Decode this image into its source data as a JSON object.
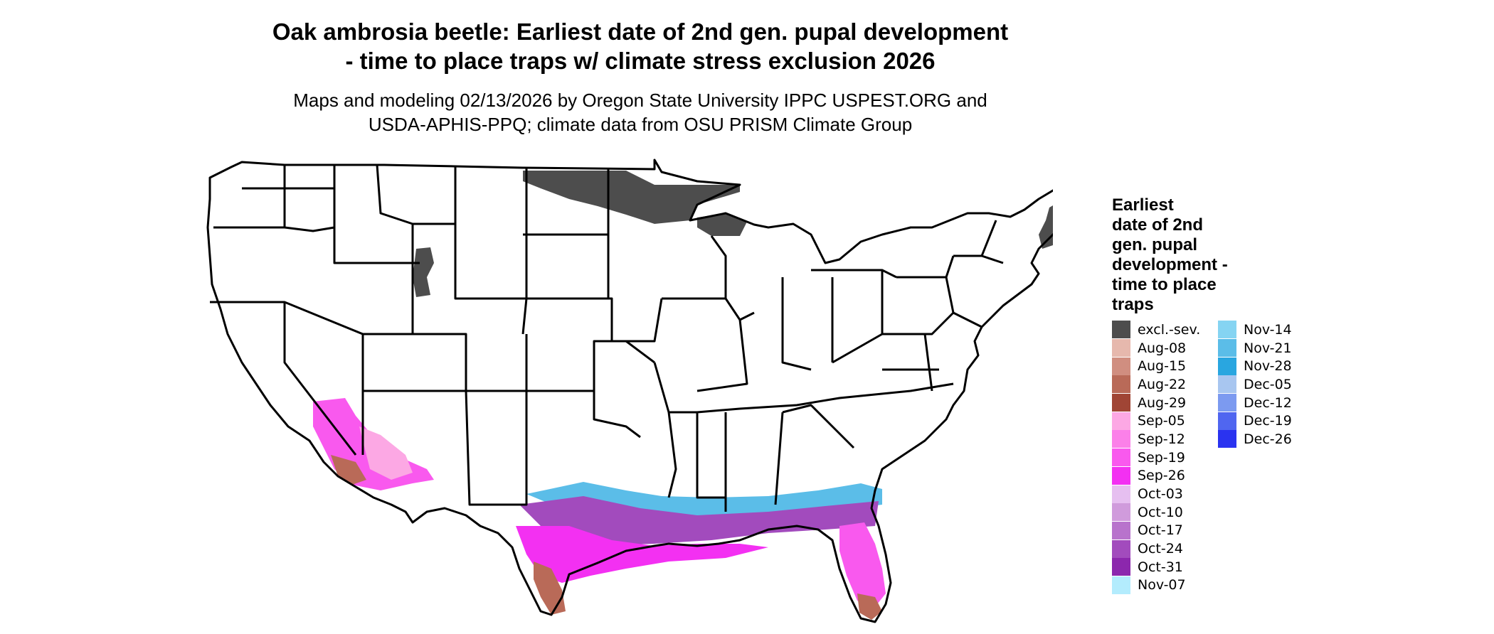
{
  "header": {
    "title_line1": "Oak ambrosia beetle: Earliest date of 2nd gen. pupal development",
    "title_line2": "- time to place traps w/ climate stress exclusion 2026",
    "subtitle_line1": "Maps and modeling 02/13/2026 by Oregon State University IPPC USPEST.ORG and",
    "subtitle_line2": "USDA-APHIS-PPQ; climate data from OSU PRISM Climate Group"
  },
  "legend": {
    "title_lines": [
      "Earliest",
      "date of 2nd",
      "gen. pupal",
      "development -",
      "time to place",
      "traps"
    ],
    "columns": [
      [
        {
          "label": "excl.-sev.",
          "color": "#4d4d4d"
        },
        {
          "label": "Aug-08",
          "color": "#e6b8ad"
        },
        {
          "label": "Aug-15",
          "color": "#d08e80"
        },
        {
          "label": "Aug-22",
          "color": "#b96a58"
        },
        {
          "label": "Aug-29",
          "color": "#a04535"
        },
        {
          "label": "Sep-05",
          "color": "#fca8e4"
        },
        {
          "label": "Sep-12",
          "color": "#fb80e9"
        },
        {
          "label": "Sep-19",
          "color": "#f959ee"
        },
        {
          "label": "Sep-26",
          "color": "#f330f2"
        },
        {
          "label": "Oct-03",
          "color": "#e6bff0"
        },
        {
          "label": "Oct-10",
          "color": "#d09bdc"
        },
        {
          "label": "Oct-17",
          "color": "#b873cc"
        },
        {
          "label": "Oct-24",
          "color": "#a24bbd"
        },
        {
          "label": "Oct-31",
          "color": "#8c27ad"
        },
        {
          "label": "Nov-07",
          "color": "#b3ecfd"
        }
      ],
      [
        {
          "label": "Nov-14",
          "color": "#85d4f2"
        },
        {
          "label": "Nov-21",
          "color": "#5bbde8"
        },
        {
          "label": "Nov-28",
          "color": "#29a6e0"
        },
        {
          "label": "Dec-05",
          "color": "#a8c6f0"
        },
        {
          "label": "Dec-12",
          "color": "#7c9af0"
        },
        {
          "label": "Dec-19",
          "color": "#5066f0"
        },
        {
          "label": "Dec-26",
          "color": "#2a33f0"
        }
      ]
    ]
  }
}
